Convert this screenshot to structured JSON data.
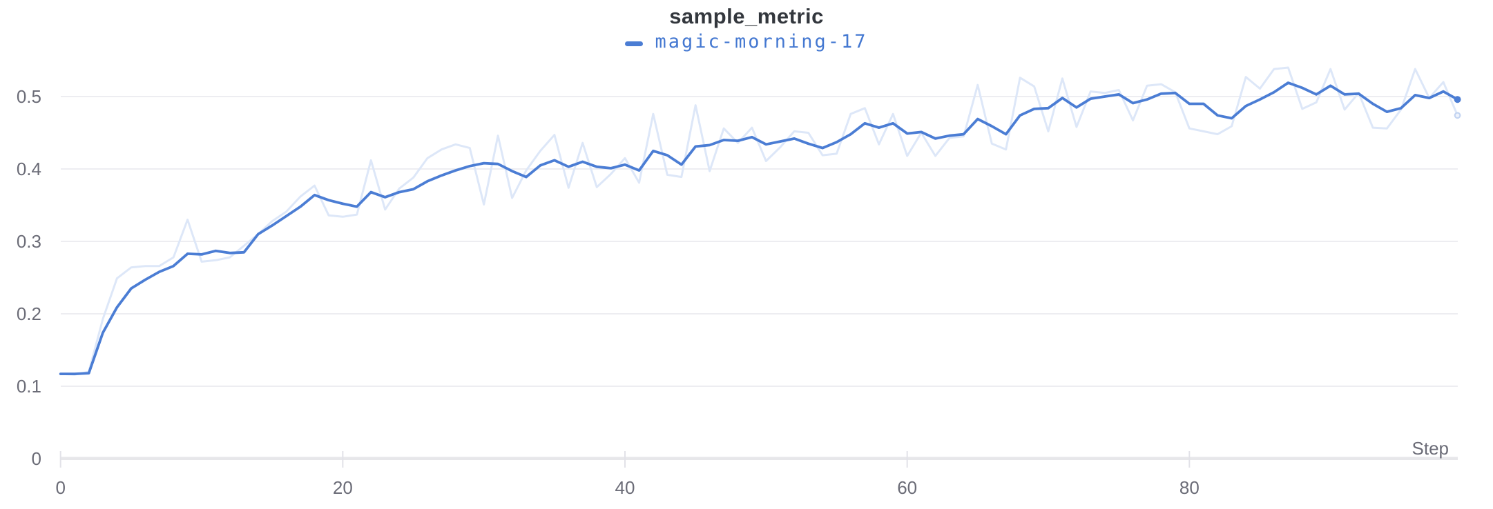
{
  "title": "sample_metric",
  "legend": {
    "run_name": "magic-morning-17",
    "swatch_color": "#4b7dd4",
    "text_color": "#4478d1"
  },
  "axes": {
    "x_label": "Step",
    "x_tick_labels": [
      "0",
      "20",
      "40",
      "60",
      "80"
    ],
    "y_tick_labels": [
      "0.5",
      "0.4",
      "0.3",
      "0.2",
      "0.1",
      "0"
    ]
  },
  "colors": {
    "line": "#4b7dd4",
    "raw_line": "#dde7f8",
    "raw_ring_stroke": "#c3d4f1",
    "raw_ring_fill": "#eef3fc",
    "title_text": "#33373d",
    "axis_text": "#6b6c77",
    "gridline": "#ededf1",
    "zero_axis": "#e7e7ea",
    "tick_mark": "#e2e2e8",
    "background": "#ffffff"
  },
  "chart_data": {
    "type": "line",
    "title": "sample_metric",
    "xlabel": "Step",
    "ylabel": "",
    "x_start": 0,
    "x_step": 1,
    "n_points": 100,
    "x_range": [
      0,
      99
    ],
    "ylim": [
      0,
      0.55
    ],
    "y_gridline_values": [
      0.5,
      0.4,
      0.3,
      0.2,
      0.1
    ],
    "x_tick_values": [
      0,
      20,
      40,
      60,
      80
    ],
    "y_tick_values": [
      0.5,
      0.4,
      0.3,
      0.2,
      0.1,
      0
    ],
    "grid": true,
    "legend_position": "top-center",
    "series": [
      {
        "name": "magic-morning-17 (raw)",
        "role": "raw",
        "color": "#dde7f8",
        "stroke_width": 3,
        "values": [
          0.117,
          0.116,
          0.12,
          0.193,
          0.249,
          0.264,
          0.266,
          0.266,
          0.278,
          0.33,
          0.272,
          0.274,
          0.278,
          0.294,
          0.31,
          0.328,
          0.341,
          0.362,
          0.377,
          0.336,
          0.334,
          0.337,
          0.412,
          0.344,
          0.373,
          0.388,
          0.415,
          0.427,
          0.434,
          0.429,
          0.351,
          0.446,
          0.36,
          0.398,
          0.425,
          0.447,
          0.374,
          0.436,
          0.375,
          0.393,
          0.415,
          0.381,
          0.476,
          0.392,
          0.389,
          0.488,
          0.397,
          0.456,
          0.436,
          0.457,
          0.411,
          0.43,
          0.452,
          0.45,
          0.419,
          0.421,
          0.476,
          0.484,
          0.434,
          0.476,
          0.418,
          0.45,
          0.418,
          0.443,
          0.445,
          0.516,
          0.435,
          0.427,
          0.526,
          0.514,
          0.452,
          0.525,
          0.458,
          0.507,
          0.505,
          0.509,
          0.467,
          0.515,
          0.517,
          0.506,
          0.456,
          0.452,
          0.448,
          0.459,
          0.527,
          0.511,
          0.538,
          0.54,
          0.483,
          0.492,
          0.538,
          0.482,
          0.505,
          0.457,
          0.456,
          0.482,
          0.538,
          0.498,
          0.52,
          0.474
        ]
      },
      {
        "name": "magic-morning-17",
        "role": "smoothed",
        "color": "#4b7dd4",
        "stroke_width": 3.8,
        "values": [
          0.117,
          0.117,
          0.118,
          0.174,
          0.209,
          0.235,
          0.247,
          0.258,
          0.266,
          0.283,
          0.282,
          0.287,
          0.284,
          0.285,
          0.31,
          0.322,
          0.335,
          0.348,
          0.364,
          0.357,
          0.352,
          0.348,
          0.368,
          0.361,
          0.368,
          0.372,
          0.383,
          0.391,
          0.398,
          0.404,
          0.408,
          0.407,
          0.397,
          0.389,
          0.405,
          0.412,
          0.403,
          0.41,
          0.403,
          0.401,
          0.406,
          0.398,
          0.425,
          0.419,
          0.406,
          0.431,
          0.433,
          0.44,
          0.439,
          0.444,
          0.434,
          0.438,
          0.442,
          0.435,
          0.429,
          0.437,
          0.448,
          0.463,
          0.457,
          0.463,
          0.449,
          0.451,
          0.442,
          0.446,
          0.448,
          0.469,
          0.459,
          0.448,
          0.474,
          0.483,
          0.484,
          0.498,
          0.485,
          0.497,
          0.5,
          0.503,
          0.491,
          0.496,
          0.504,
          0.505,
          0.49,
          0.49,
          0.474,
          0.47,
          0.487,
          0.496,
          0.506,
          0.519,
          0.512,
          0.503,
          0.515,
          0.503,
          0.504,
          0.49,
          0.479,
          0.484,
          0.502,
          0.498,
          0.507,
          0.496
        ]
      }
    ],
    "end_markers": [
      {
        "series": "magic-morning-17",
        "x": 99,
        "y": 0.496,
        "style": "filled-dot"
      },
      {
        "series": "magic-morning-17 (raw)",
        "x": 99,
        "y": 0.474,
        "style": "open-ring"
      }
    ]
  }
}
